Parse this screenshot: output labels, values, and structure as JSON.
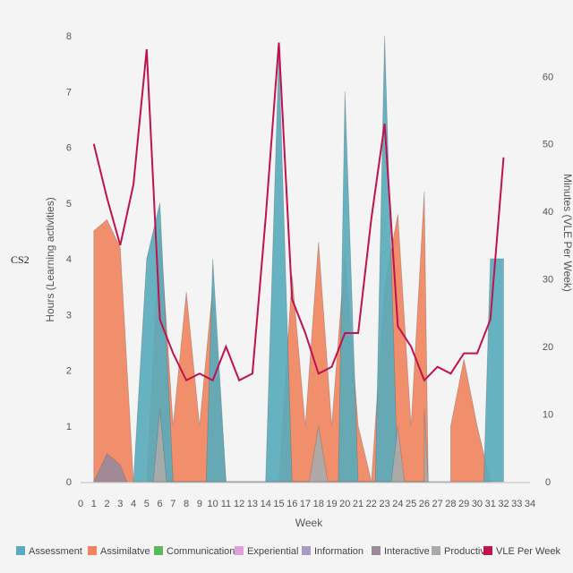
{
  "chart_data": {
    "type": "area",
    "side_label": "CS2",
    "xlabel": "Week",
    "ylabel": "Hours (Learning activities)",
    "y2label": "Minutes (VLE Per Week)",
    "xlim": [
      0,
      34
    ],
    "ylim": [
      0,
      8
    ],
    "y2lim": [
      0,
      66
    ],
    "x_ticks": [
      "0",
      "1",
      "2",
      "3",
      "4",
      "5",
      "6",
      "7",
      "8",
      "9",
      "10",
      "11",
      "12",
      "13",
      "14",
      "15",
      "16",
      "17",
      "18",
      "19",
      "20",
      "21",
      "22",
      "23",
      "24",
      "25",
      "26",
      "27",
      "28",
      "29",
      "30",
      "31",
      "32",
      "33",
      "34"
    ],
    "y_ticks": [
      "0",
      "1",
      "2",
      "3",
      "4",
      "5",
      "6",
      "7",
      "8"
    ],
    "y2_ticks": [
      "0",
      "10",
      "20",
      "30",
      "40",
      "50",
      "60"
    ],
    "grid": false,
    "legend_position": "bottom",
    "series": [
      {
        "name": "Assimilative",
        "color": "#f0845f",
        "values": [
          [
            1,
            4.5
          ],
          [
            2,
            4.7
          ],
          [
            3,
            4.2
          ],
          [
            4,
            0
          ],
          [
            5,
            0
          ],
          [
            6,
            4.6
          ],
          [
            7,
            1
          ],
          [
            8,
            3.4
          ],
          [
            9,
            1
          ],
          [
            10,
            3.5
          ],
          [
            11,
            0
          ],
          [
            15,
            0
          ],
          [
            16,
            3.7
          ],
          [
            17,
            1
          ],
          [
            18,
            4.3
          ],
          [
            19,
            1
          ],
          [
            20,
            4.1
          ],
          [
            21,
            1
          ],
          [
            22,
            0
          ],
          [
            23,
            3.5
          ],
          [
            24,
            4.8
          ],
          [
            25,
            1
          ],
          [
            26,
            5.2
          ],
          [
            26.3,
            0
          ],
          [
            28,
            0
          ],
          [
            28,
            1
          ],
          [
            29,
            2.2
          ],
          [
            30,
            1
          ],
          [
            31,
            0
          ]
        ]
      },
      {
        "name": "Assessment",
        "color": "#5aabbc",
        "values": [
          [
            4,
            0
          ],
          [
            5,
            4
          ],
          [
            6,
            5
          ],
          [
            7,
            0
          ],
          [
            9.5,
            0
          ],
          [
            10,
            4
          ],
          [
            11,
            0
          ],
          [
            14,
            0
          ],
          [
            15,
            7.7
          ],
          [
            16,
            0
          ],
          [
            19.5,
            0
          ],
          [
            20,
            7
          ],
          [
            21,
            0
          ],
          [
            22.3,
            0
          ],
          [
            23,
            8
          ],
          [
            24,
            0
          ],
          [
            30.5,
            0
          ],
          [
            31,
            4
          ],
          [
            32,
            4
          ],
          [
            32,
            0
          ]
        ]
      },
      {
        "name": "Productive",
        "color": "#aaaaaa",
        "values": [
          [
            5.5,
            0
          ],
          [
            6,
            1.3
          ],
          [
            6.5,
            0
          ],
          [
            17.3,
            0
          ],
          [
            18,
            1
          ],
          [
            18.7,
            0
          ],
          [
            23.5,
            0
          ],
          [
            24,
            1
          ],
          [
            24.5,
            0
          ],
          [
            26,
            0
          ],
          [
            26,
            1.3
          ],
          [
            26.3,
            0
          ]
        ]
      },
      {
        "name": "Interactive",
        "color": "#9a8a9a",
        "values": [
          [
            1,
            0
          ],
          [
            2,
            0.5
          ],
          [
            3,
            0.3
          ],
          [
            3.5,
            0
          ]
        ]
      },
      {
        "name": "Communication",
        "color": "#5cb85c",
        "values": []
      },
      {
        "name": "Experiential",
        "color": "#e0a0e0",
        "values": []
      },
      {
        "name": "Information",
        "color": "#a79cc9",
        "values": []
      },
      {
        "name": "VLE Per Week",
        "color": "#c0124f",
        "axis": "right",
        "values": [
          [
            1,
            50
          ],
          [
            2,
            42
          ],
          [
            3,
            35
          ],
          [
            4,
            44
          ],
          [
            5,
            64
          ],
          [
            6,
            24
          ],
          [
            7,
            19
          ],
          [
            8,
            15
          ],
          [
            9,
            16
          ],
          [
            10,
            15
          ],
          [
            11,
            20
          ],
          [
            12,
            15
          ],
          [
            13,
            16
          ],
          [
            14,
            39
          ],
          [
            15,
            65
          ],
          [
            16,
            27
          ],
          [
            17,
            22
          ],
          [
            18,
            16
          ],
          [
            19,
            17
          ],
          [
            20,
            22
          ],
          [
            21,
            22
          ],
          [
            22,
            39
          ],
          [
            23,
            53
          ],
          [
            24,
            23
          ],
          [
            25,
            20
          ],
          [
            26,
            15
          ],
          [
            27,
            17
          ],
          [
            28,
            16
          ],
          [
            29,
            19
          ],
          [
            30,
            19
          ],
          [
            31,
            24
          ],
          [
            32,
            48
          ]
        ]
      }
    ],
    "legend": [
      {
        "label": "Assessment",
        "color": "#5aabbc"
      },
      {
        "label": "Assimilatve",
        "color": "#f0845f"
      },
      {
        "label": "Communication",
        "color": "#5cb85c"
      },
      {
        "label": "Experiential",
        "color": "#e0a0e0"
      },
      {
        "label": "Information",
        "color": "#a79cc9"
      },
      {
        "label": "Interactive",
        "color": "#9a8a9a"
      },
      {
        "label": "Productive",
        "color": "#aaaaaa"
      },
      {
        "label": "VLE Per Week",
        "color": "#c0124f"
      }
    ]
  }
}
